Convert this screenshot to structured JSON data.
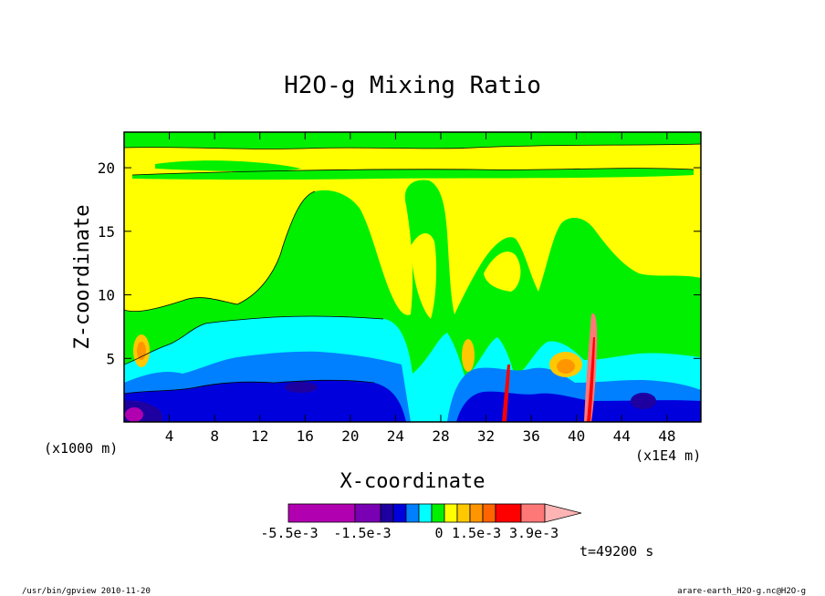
{
  "chart_data": {
    "type": "heatmap",
    "title": "H2O-g Mixing Ratio",
    "xlabel": "X-coordinate",
    "ylabel": "Z-coordinate",
    "x_unit_left": "(x1000 m)",
    "x_unit_right": "(x1E4 m)",
    "xlim": [
      0,
      51
    ],
    "ylim": [
      0,
      22.8
    ],
    "x_ticks": [
      4,
      8,
      12,
      16,
      20,
      24,
      28,
      32,
      36,
      40,
      44,
      48
    ],
    "y_ticks": [
      5,
      10,
      15,
      20
    ],
    "colorbar": {
      "colors": [
        "#b000b0",
        "#7a00b4",
        "#1e00a0",
        "#0000dc",
        "#0080ff",
        "#00ffff",
        "#00f000",
        "#ffff00",
        "#ffc800",
        "#ff9600",
        "#ff6400",
        "#ff0000",
        "#ff7878",
        "#ffb4b4"
      ],
      "labels": [
        "-5.5e-3",
        "-1.5e-3",
        "0",
        "1.5e-3",
        "3.9e-3"
      ]
    },
    "time_label": "t=49200 s",
    "grid": false,
    "legend": "bottom-colorbar"
  },
  "footer": {
    "left": "/usr/bin/gpview  2010-11-20",
    "right": "arare-earth_H2O-g.nc@H2O-g"
  }
}
